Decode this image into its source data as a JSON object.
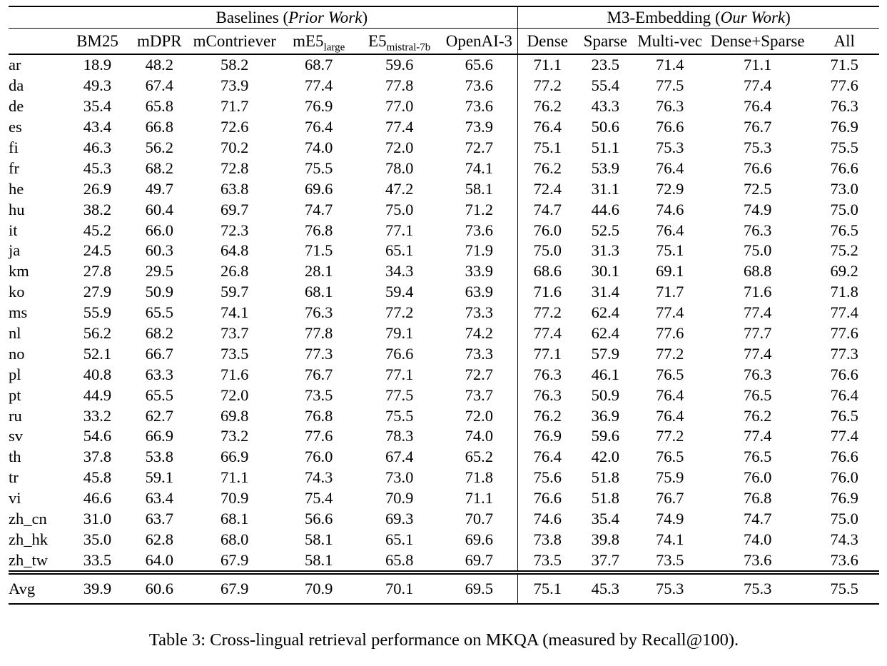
{
  "caption": "Table 3: Cross-lingual retrieval performance on MKQA (measured by Recall@100).",
  "table": {
    "groups": [
      {
        "label": "Baselines",
        "open": " (",
        "sublabel": "Prior Work",
        "close": ")"
      },
      {
        "label": "M3-Embedding",
        "open": " (",
        "sublabel": "Our Work",
        "close": ")"
      }
    ],
    "columns": [
      {
        "label": "BM25"
      },
      {
        "label": "mDPR"
      },
      {
        "label": "mContriever"
      },
      {
        "label": "mE5",
        "sub": "large"
      },
      {
        "label": "E5",
        "sub": "mistral-7b"
      },
      {
        "label": "OpenAI-3"
      },
      {
        "label": "Dense"
      },
      {
        "label": "Sparse"
      },
      {
        "label": "Multi-vec"
      },
      {
        "label": "Dense+Sparse"
      },
      {
        "label": "All"
      }
    ],
    "rows": [
      {
        "lang": "ar",
        "values": [
          "18.9",
          "48.2",
          "58.2",
          "68.7",
          "59.6",
          "65.6",
          "71.1",
          "23.5",
          "71.4",
          "71.1",
          "71.5"
        ],
        "bold": [
          10
        ]
      },
      {
        "lang": "da",
        "values": [
          "49.3",
          "67.4",
          "73.9",
          "77.4",
          "77.8",
          "73.6",
          "77.2",
          "55.4",
          "77.5",
          "77.4",
          "77.6"
        ],
        "bold": [
          4
        ]
      },
      {
        "lang": "de",
        "values": [
          "35.4",
          "65.8",
          "71.7",
          "76.9",
          "77.0",
          "73.6",
          "76.2",
          "43.3",
          "76.3",
          "76.4",
          "76.3"
        ],
        "bold": [
          4
        ]
      },
      {
        "lang": "es",
        "values": [
          "43.4",
          "66.8",
          "72.6",
          "76.4",
          "77.4",
          "73.9",
          "76.4",
          "50.6",
          "76.6",
          "76.7",
          "76.9"
        ],
        "bold": [
          4
        ]
      },
      {
        "lang": "fi",
        "values": [
          "46.3",
          "56.2",
          "70.2",
          "74.0",
          "72.0",
          "72.7",
          "75.1",
          "51.1",
          "75.3",
          "75.3",
          "75.5"
        ],
        "bold": [
          10
        ]
      },
      {
        "lang": "fr",
        "values": [
          "45.3",
          "68.2",
          "72.8",
          "75.5",
          "78.0",
          "74.1",
          "76.2",
          "53.9",
          "76.4",
          "76.6",
          "76.6"
        ],
        "bold": [
          4
        ]
      },
      {
        "lang": "he",
        "values": [
          "26.9",
          "49.7",
          "63.8",
          "69.6",
          "47.2",
          "58.1",
          "72.4",
          "31.1",
          "72.9",
          "72.5",
          "73.0"
        ],
        "bold": [
          10
        ]
      },
      {
        "lang": "hu",
        "values": [
          "38.2",
          "60.4",
          "69.7",
          "74.7",
          "75.0",
          "71.2",
          "74.7",
          "44.6",
          "74.6",
          "74.9",
          "75.0"
        ],
        "bold": [
          4,
          10
        ]
      },
      {
        "lang": "it",
        "values": [
          "45.2",
          "66.0",
          "72.3",
          "76.8",
          "77.1",
          "73.6",
          "76.0",
          "52.5",
          "76.4",
          "76.3",
          "76.5"
        ],
        "bold": [
          4
        ]
      },
      {
        "lang": "ja",
        "values": [
          "24.5",
          "60.3",
          "64.8",
          "71.5",
          "65.1",
          "71.9",
          "75.0",
          "31.3",
          "75.1",
          "75.0",
          "75.2"
        ],
        "bold": [
          10
        ]
      },
      {
        "lang": "km",
        "values": [
          "27.8",
          "29.5",
          "26.8",
          "28.1",
          "34.3",
          "33.9",
          "68.6",
          "30.1",
          "69.1",
          "68.8",
          "69.2"
        ],
        "bold": [
          10
        ]
      },
      {
        "lang": "ko",
        "values": [
          "27.9",
          "50.9",
          "59.7",
          "68.1",
          "59.4",
          "63.9",
          "71.6",
          "31.4",
          "71.7",
          "71.6",
          "71.8"
        ],
        "bold": [
          10
        ]
      },
      {
        "lang": "ms",
        "values": [
          "55.9",
          "65.5",
          "74.1",
          "76.3",
          "77.2",
          "73.3",
          "77.2",
          "62.4",
          "77.4",
          "77.4",
          "77.4"
        ],
        "bold": [
          8,
          9,
          10
        ]
      },
      {
        "lang": "nl",
        "values": [
          "56.2",
          "68.2",
          "73.7",
          "77.8",
          "79.1",
          "74.2",
          "77.4",
          "62.4",
          "77.6",
          "77.7",
          "77.6"
        ],
        "bold": [
          4
        ]
      },
      {
        "lang": "no",
        "values": [
          "52.1",
          "66.7",
          "73.5",
          "77.3",
          "76.6",
          "73.3",
          "77.1",
          "57.9",
          "77.2",
          "77.4",
          "77.3"
        ],
        "bold": [
          9
        ]
      },
      {
        "lang": "pl",
        "values": [
          "40.8",
          "63.3",
          "71.6",
          "76.7",
          "77.1",
          "72.7",
          "76.3",
          "46.1",
          "76.5",
          "76.3",
          "76.6"
        ],
        "bold": [
          4
        ]
      },
      {
        "lang": "pt",
        "values": [
          "44.9",
          "65.5",
          "72.0",
          "73.5",
          "77.5",
          "73.7",
          "76.3",
          "50.9",
          "76.4",
          "76.5",
          "76.4"
        ],
        "bold": [
          4
        ]
      },
      {
        "lang": "ru",
        "values": [
          "33.2",
          "62.7",
          "69.8",
          "76.8",
          "75.5",
          "72.0",
          "76.2",
          "36.9",
          "76.4",
          "76.2",
          "76.5"
        ],
        "bold": [
          3
        ]
      },
      {
        "lang": "sv",
        "values": [
          "54.6",
          "66.9",
          "73.2",
          "77.6",
          "78.3",
          "74.0",
          "76.9",
          "59.6",
          "77.2",
          "77.4",
          "77.4"
        ],
        "bold": [
          4
        ]
      },
      {
        "lang": "th",
        "values": [
          "37.8",
          "53.8",
          "66.9",
          "76.0",
          "67.4",
          "65.2",
          "76.4",
          "42.0",
          "76.5",
          "76.5",
          "76.6"
        ],
        "bold": [
          10
        ]
      },
      {
        "lang": "tr",
        "values": [
          "45.8",
          "59.1",
          "71.1",
          "74.3",
          "73.0",
          "71.8",
          "75.6",
          "51.8",
          "75.9",
          "76.0",
          "76.0"
        ],
        "bold": [
          9,
          10
        ]
      },
      {
        "lang": "vi",
        "values": [
          "46.6",
          "63.4",
          "70.9",
          "75.4",
          "70.9",
          "71.1",
          "76.6",
          "51.8",
          "76.7",
          "76.8",
          "76.9"
        ],
        "bold": [
          10
        ]
      },
      {
        "lang": "zh_cn",
        "values": [
          "31.0",
          "63.7",
          "68.1",
          "56.6",
          "69.3",
          "70.7",
          "74.6",
          "35.4",
          "74.9",
          "74.7",
          "75.0"
        ],
        "bold": [
          10
        ]
      },
      {
        "lang": "zh_hk",
        "values": [
          "35.0",
          "62.8",
          "68.0",
          "58.1",
          "65.1",
          "69.6",
          "73.8",
          "39.8",
          "74.1",
          "74.0",
          "74.3"
        ],
        "bold": [
          10
        ]
      },
      {
        "lang": "zh_tw",
        "values": [
          "33.5",
          "64.0",
          "67.9",
          "58.1",
          "65.8",
          "69.7",
          "73.5",
          "37.7",
          "73.5",
          "73.6",
          "73.6"
        ],
        "bold": [
          9,
          10
        ]
      }
    ],
    "avg_row": {
      "lang": "Avg",
      "values": [
        "39.9",
        "60.6",
        "67.9",
        "70.9",
        "70.1",
        "69.5",
        "75.1",
        "45.3",
        "75.3",
        "75.3",
        "75.5"
      ],
      "bold": [
        10
      ]
    }
  }
}
